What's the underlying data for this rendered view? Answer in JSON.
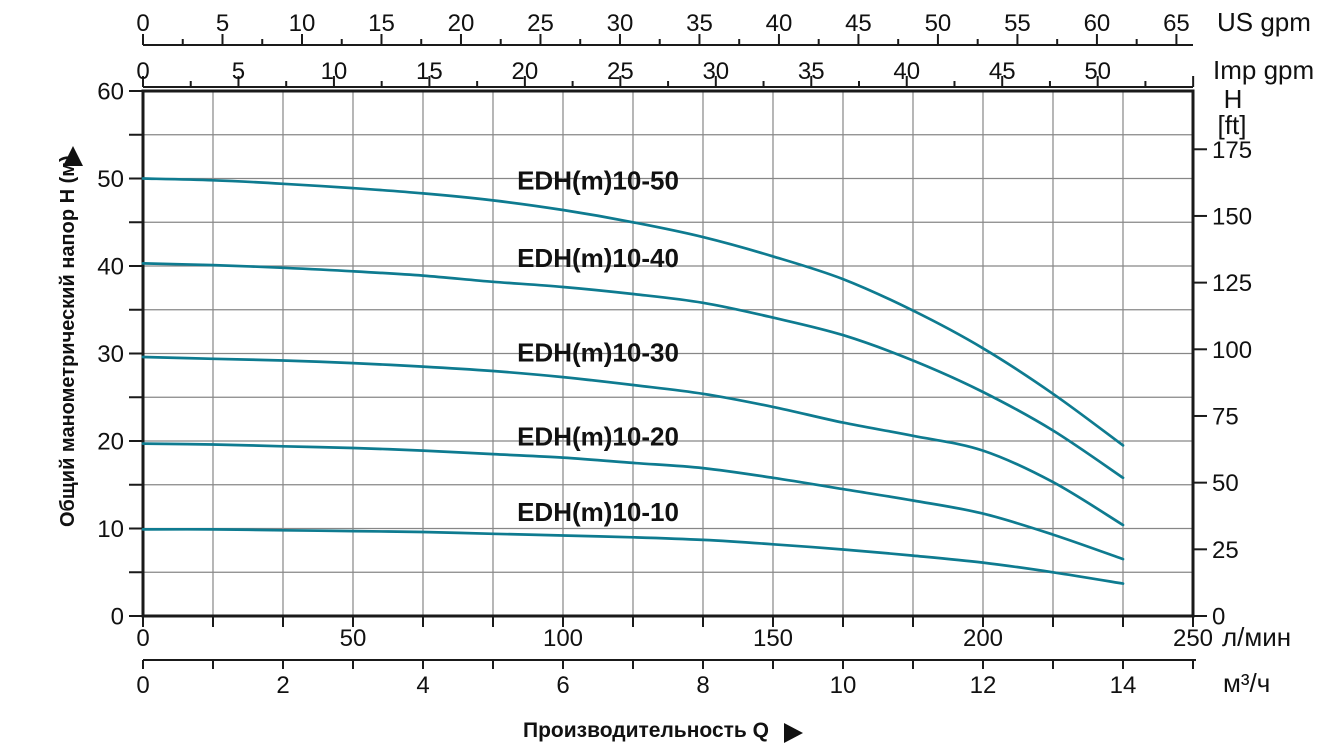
{
  "labels": {
    "y_axis": "Общий манометрический напор H (м)",
    "x_caption": "Производительность Q"
  },
  "chart_data": {
    "type": "line",
    "title": "",
    "grid": "on",
    "curve_color": "#0e7b90",
    "axis_color": "#1a1a1a",
    "grid_color": "#878787",
    "x_axes": [
      {
        "id": "us-gpm",
        "unit": "US gpm",
        "major_ticks": [
          0,
          5,
          10,
          15,
          20,
          25,
          30,
          35,
          40,
          45,
          50,
          55,
          60,
          65
        ],
        "minor_interval": 2.5
      },
      {
        "id": "imp-gpm",
        "unit": "Imp gpm",
        "major_ticks": [
          0,
          5,
          10,
          15,
          20,
          25,
          30,
          35,
          40,
          45,
          50
        ],
        "minor_interval": 2.5
      },
      {
        "id": "l-min",
        "unit": "л/мин",
        "labeled_ticks": [
          0,
          50,
          100,
          150,
          200,
          250
        ],
        "range": [
          0,
          250
        ]
      },
      {
        "id": "m3-h",
        "unit": "м³/ч",
        "labeled_ticks": [
          0,
          2,
          4,
          6,
          8,
          10,
          12,
          14
        ],
        "tick_interval": 1,
        "range": [
          0,
          15
        ]
      }
    ],
    "y_axes": [
      {
        "id": "h-m",
        "unit_title": "",
        "unit": "м",
        "labeled_ticks": [
          0,
          10,
          20,
          30,
          40,
          50,
          60
        ],
        "tick_interval": 5,
        "range": [
          0,
          60
        ]
      },
      {
        "id": "h-ft",
        "unit_title": "H",
        "unit": "[ft]",
        "labeled_ticks": [
          0,
          25,
          50,
          75,
          100,
          125,
          150,
          175
        ],
        "tick_interval": 25
      }
    ],
    "series": [
      {
        "name": "EDH(m)10-50",
        "label_anchor_q_h": [
          6.5,
          49.8
        ],
        "points_m3h_m": [
          [
            0,
            50
          ],
          [
            1,
            49.8
          ],
          [
            2,
            49.4
          ],
          [
            3,
            48.9
          ],
          [
            4,
            48.3
          ],
          [
            5,
            47.5
          ],
          [
            6,
            46.4
          ],
          [
            7,
            45
          ],
          [
            8,
            43.3
          ],
          [
            9,
            41.1
          ],
          [
            10,
            38.5
          ],
          [
            11,
            34.9
          ],
          [
            12,
            30.6
          ],
          [
            13,
            25.4
          ],
          [
            14,
            19.5
          ]
        ]
      },
      {
        "name": "EDH(m)10-40",
        "label_anchor_q_h": [
          6.5,
          40.9
        ],
        "points_m3h_m": [
          [
            0,
            40.3
          ],
          [
            1,
            40.1
          ],
          [
            2,
            39.8
          ],
          [
            3,
            39.4
          ],
          [
            4,
            38.9
          ],
          [
            5,
            38.2
          ],
          [
            6,
            37.6
          ],
          [
            7,
            36.8
          ],
          [
            8,
            35.8
          ],
          [
            9,
            34.1
          ],
          [
            10,
            32.1
          ],
          [
            11,
            29.2
          ],
          [
            12,
            25.6
          ],
          [
            13,
            21.2
          ],
          [
            14,
            15.8
          ]
        ]
      },
      {
        "name": "EDH(m)10-30",
        "label_anchor_q_h": [
          6.5,
          30.1
        ],
        "points_m3h_m": [
          [
            0,
            29.6
          ],
          [
            1,
            29.4
          ],
          [
            2,
            29.2
          ],
          [
            3,
            28.9
          ],
          [
            4,
            28.5
          ],
          [
            5,
            28
          ],
          [
            6,
            27.3
          ],
          [
            7,
            26.4
          ],
          [
            8,
            25.4
          ],
          [
            9,
            23.9
          ],
          [
            10,
            22.1
          ],
          [
            11,
            20.6
          ],
          [
            12,
            18.9
          ],
          [
            13,
            15.3
          ],
          [
            14,
            10.4
          ]
        ]
      },
      {
        "name": "EDH(m)10-20",
        "label_anchor_q_h": [
          6.5,
          20.5
        ],
        "points_m3h_m": [
          [
            0,
            19.7
          ],
          [
            1,
            19.6
          ],
          [
            2,
            19.4
          ],
          [
            3,
            19.2
          ],
          [
            4,
            18.9
          ],
          [
            5,
            18.5
          ],
          [
            6,
            18.1
          ],
          [
            7,
            17.5
          ],
          [
            8,
            16.9
          ],
          [
            9,
            15.8
          ],
          [
            10,
            14.5
          ],
          [
            11,
            13.2
          ],
          [
            12,
            11.7
          ],
          [
            13,
            9.3
          ],
          [
            14,
            6.5
          ]
        ]
      },
      {
        "name": "EDH(m)10-10",
        "label_anchor_q_h": [
          6.5,
          11.9
        ],
        "points_m3h_m": [
          [
            0,
            9.9
          ],
          [
            1,
            9.9
          ],
          [
            2,
            9.8
          ],
          [
            3,
            9.7
          ],
          [
            4,
            9.6
          ],
          [
            5,
            9.4
          ],
          [
            6,
            9.2
          ],
          [
            7,
            9
          ],
          [
            8,
            8.7
          ],
          [
            9,
            8.2
          ],
          [
            10,
            7.6
          ],
          [
            11,
            6.9
          ],
          [
            12,
            6.1
          ],
          [
            13,
            5
          ],
          [
            14,
            3.7
          ]
        ]
      }
    ]
  }
}
